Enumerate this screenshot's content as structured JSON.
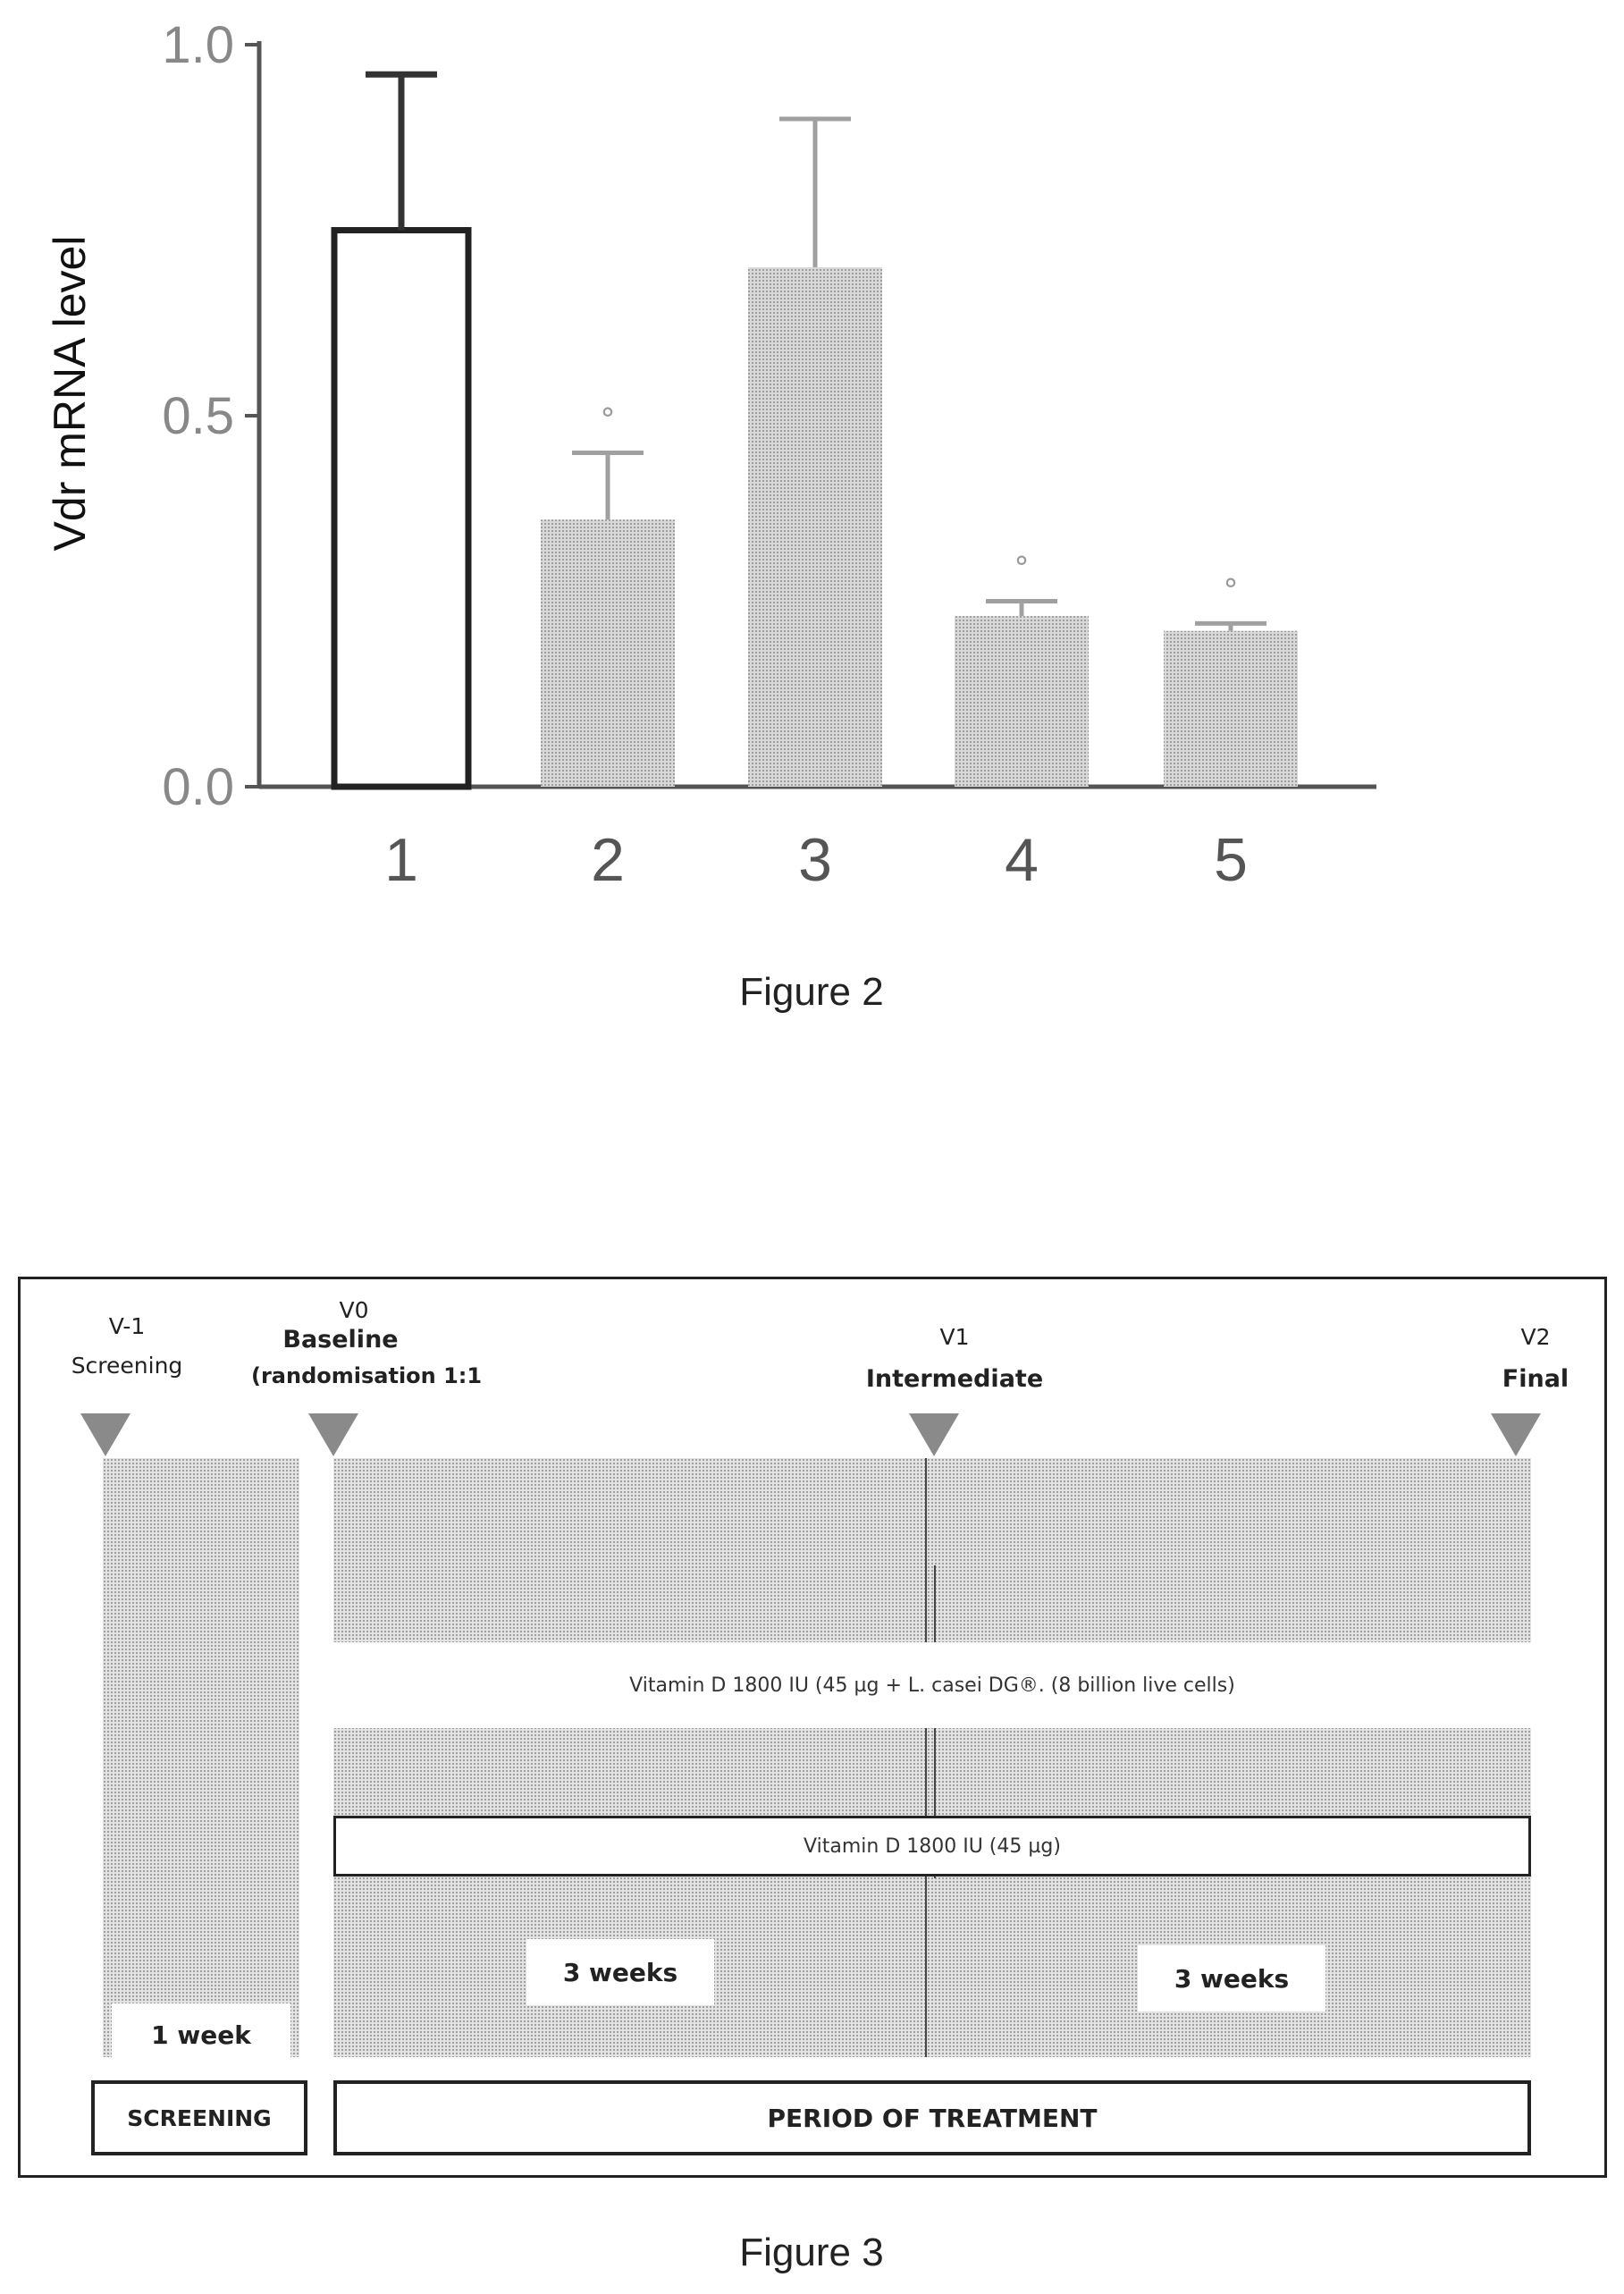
{
  "chart_data": {
    "type": "bar",
    "categories": [
      "1",
      "2",
      "3",
      "4",
      "5"
    ],
    "values": [
      0.75,
      0.36,
      0.7,
      0.23,
      0.21
    ],
    "errors": [
      0.21,
      0.09,
      0.2,
      0.02,
      0.01
    ],
    "significance": [
      "",
      "°",
      "",
      "°",
      "°"
    ],
    "ylabel": "Vdr mRNA level",
    "xlabel": "",
    "ylim": [
      0,
      1.0
    ],
    "yticks": [
      "0.0",
      "0.5",
      "1.0"
    ],
    "bar_styles": [
      "open",
      "shaded",
      "shaded",
      "shaded",
      "shaded"
    ],
    "grid": false
  },
  "figure2": {
    "caption": "Figure 2"
  },
  "figure3": {
    "caption": "Figure 3",
    "visits": {
      "vm1": {
        "code": "V-1",
        "name": "Screening"
      },
      "v0": {
        "code": "V0",
        "name": "Baseline",
        "note": "(randomisation 1:1"
      },
      "v1": {
        "code": "V1",
        "name": "Intermediate"
      },
      "v2": {
        "code": "V2",
        "name": "Final"
      }
    },
    "arm1_label": "Vitamin D 1800 IU (45 µg + L. casei DG®. (8 billion live cells)",
    "arm2_label": "Vitamin D 1800 IU (45 µg)",
    "durations": {
      "screening": "1 week",
      "first_half": "3 weeks",
      "second_half": "3 weeks"
    },
    "phases": {
      "screening": "SCREENING",
      "treatment": "PERIOD OF TREATMENT"
    }
  }
}
